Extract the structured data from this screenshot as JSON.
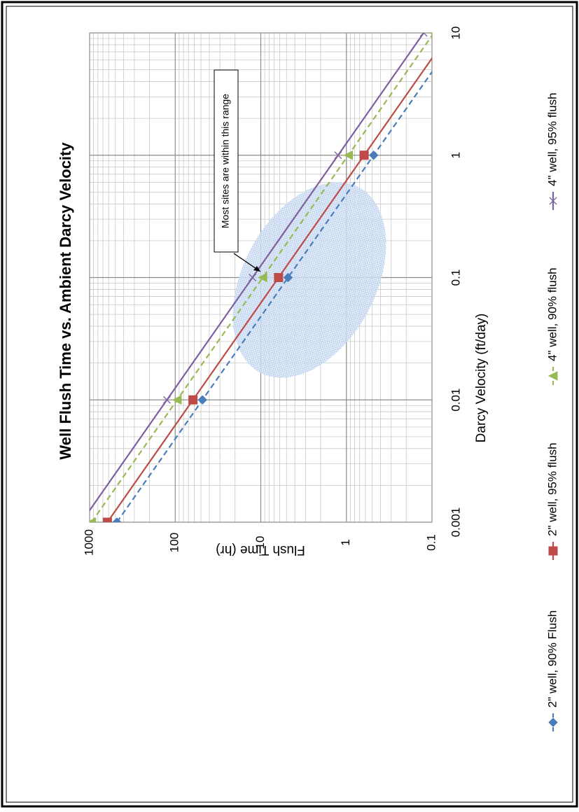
{
  "chart_data": {
    "type": "line",
    "title": "Well Flush Time vs. Ambient Darcy Velocity",
    "x_label": "Darcy Velocity (ft/day)",
    "y_label": "Flush Time (hr)",
    "x": [
      0.001,
      0.01,
      0.1,
      1,
      10
    ],
    "xlim": [
      0.001,
      10
    ],
    "xticks": [
      0.001,
      0.01,
      0.1,
      1,
      10
    ],
    "ylim": [
      0.1,
      1000
    ],
    "yticks": [
      0.1,
      1,
      10,
      100,
      1000
    ],
    "log_x": true,
    "log_y": true,
    "grid": true,
    "minor_grid": true,
    "legend": "bottom",
    "annotation": "Most sites  are within this range",
    "series": [
      {
        "name": "2\" well, 90% Flush",
        "color": "#4a7ebb",
        "dash": true,
        "marker": "diamond",
        "values": [
          480,
          48,
          4.8,
          0.48,
          0.048
        ]
      },
      {
        "name": "2\" well, 95% flush",
        "color": "#be4b48",
        "dash": false,
        "marker": "square",
        "values": [
          620,
          62,
          6.2,
          0.62,
          0.062
        ]
      },
      {
        "name": "4\" well, 90% flush",
        "color": "#98b954",
        "dash": true,
        "marker": "triangle",
        "values": [
          950,
          95,
          9.5,
          0.95,
          0.095
        ]
      },
      {
        "name": "4\" well, 95% flush",
        "color": "#7d60a0",
        "dash": false,
        "marker": "cross",
        "values": [
          1250,
          125,
          12.5,
          1.25,
          0.125
        ]
      }
    ]
  }
}
